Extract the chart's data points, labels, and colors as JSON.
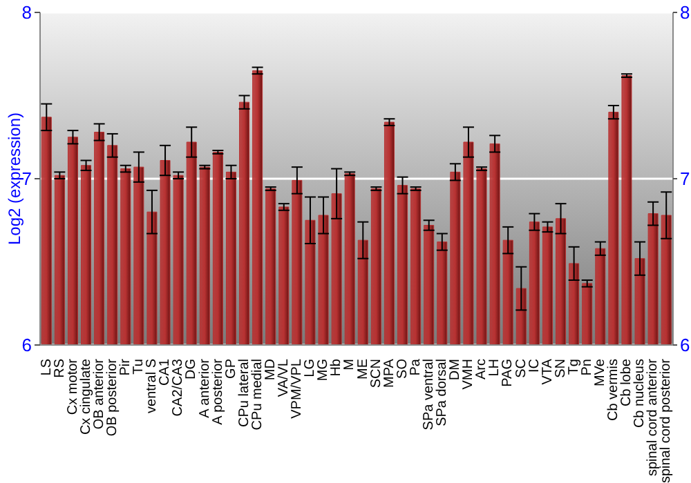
{
  "chart_data": {
    "type": "bar",
    "ylabel": "Log2 (expression)",
    "categories": [
      "LS",
      "RS",
      "Cx motor",
      "Cx cingulate",
      "OB anterior",
      "OB posterior",
      "Pir",
      "Tu",
      "ventral S",
      "CA1",
      "CA2/CA3",
      "DG",
      "A anterior",
      "A posterior",
      "GP",
      "CPu lateral",
      "CPu medial",
      "MD",
      "VA/VL",
      "VPM/VPL",
      "LG",
      "MG",
      "Hb",
      "M",
      "ME",
      "SCN",
      "MPA",
      "SO",
      "Pa",
      "SPa ventral",
      "SPa dorsal",
      "DM",
      "VMH",
      "Arc",
      "LH",
      "PAG",
      "SC",
      "IC",
      "VTA",
      "SN",
      "Tg",
      "Pn",
      "MVe",
      "Cb vermis",
      "Cb lobe",
      "Cb nucleus",
      "spinal cord anterior",
      "spinal cord posterior"
    ],
    "values": [
      7.37,
      7.02,
      7.25,
      7.08,
      7.28,
      7.2,
      7.06,
      7.07,
      6.8,
      7.11,
      7.02,
      7.22,
      7.07,
      7.16,
      7.04,
      7.46,
      7.65,
      6.94,
      6.83,
      6.99,
      6.75,
      6.78,
      6.91,
      7.03,
      6.63,
      6.94,
      7.34,
      6.96,
      6.94,
      6.72,
      6.62,
      7.04,
      7.22,
      7.06,
      7.21,
      6.63,
      6.34,
      6.74,
      6.71,
      6.76,
      6.49,
      6.37,
      6.58,
      7.4,
      7.62,
      6.52,
      6.79,
      6.78
    ],
    "errors": [
      0.08,
      0.02,
      0.04,
      0.03,
      0.05,
      0.07,
      0.02,
      0.09,
      0.13,
      0.09,
      0.02,
      0.09,
      0.01,
      0.01,
      0.04,
      0.04,
      0.02,
      0.01,
      0.02,
      0.08,
      0.14,
      0.11,
      0.15,
      0.01,
      0.11,
      0.01,
      0.02,
      0.05,
      0.01,
      0.03,
      0.05,
      0.05,
      0.09,
      0.01,
      0.05,
      0.08,
      0.13,
      0.05,
      0.03,
      0.09,
      0.1,
      0.02,
      0.04,
      0.04,
      0.01,
      0.1,
      0.07,
      0.14
    ],
    "color": "#b83232",
    "ylim": [
      6,
      8
    ],
    "yticks": [
      6,
      7,
      8
    ],
    "y2lim": [
      6,
      8
    ],
    "y2ticks": [
      6,
      7,
      8
    ],
    "grid": "y"
  }
}
